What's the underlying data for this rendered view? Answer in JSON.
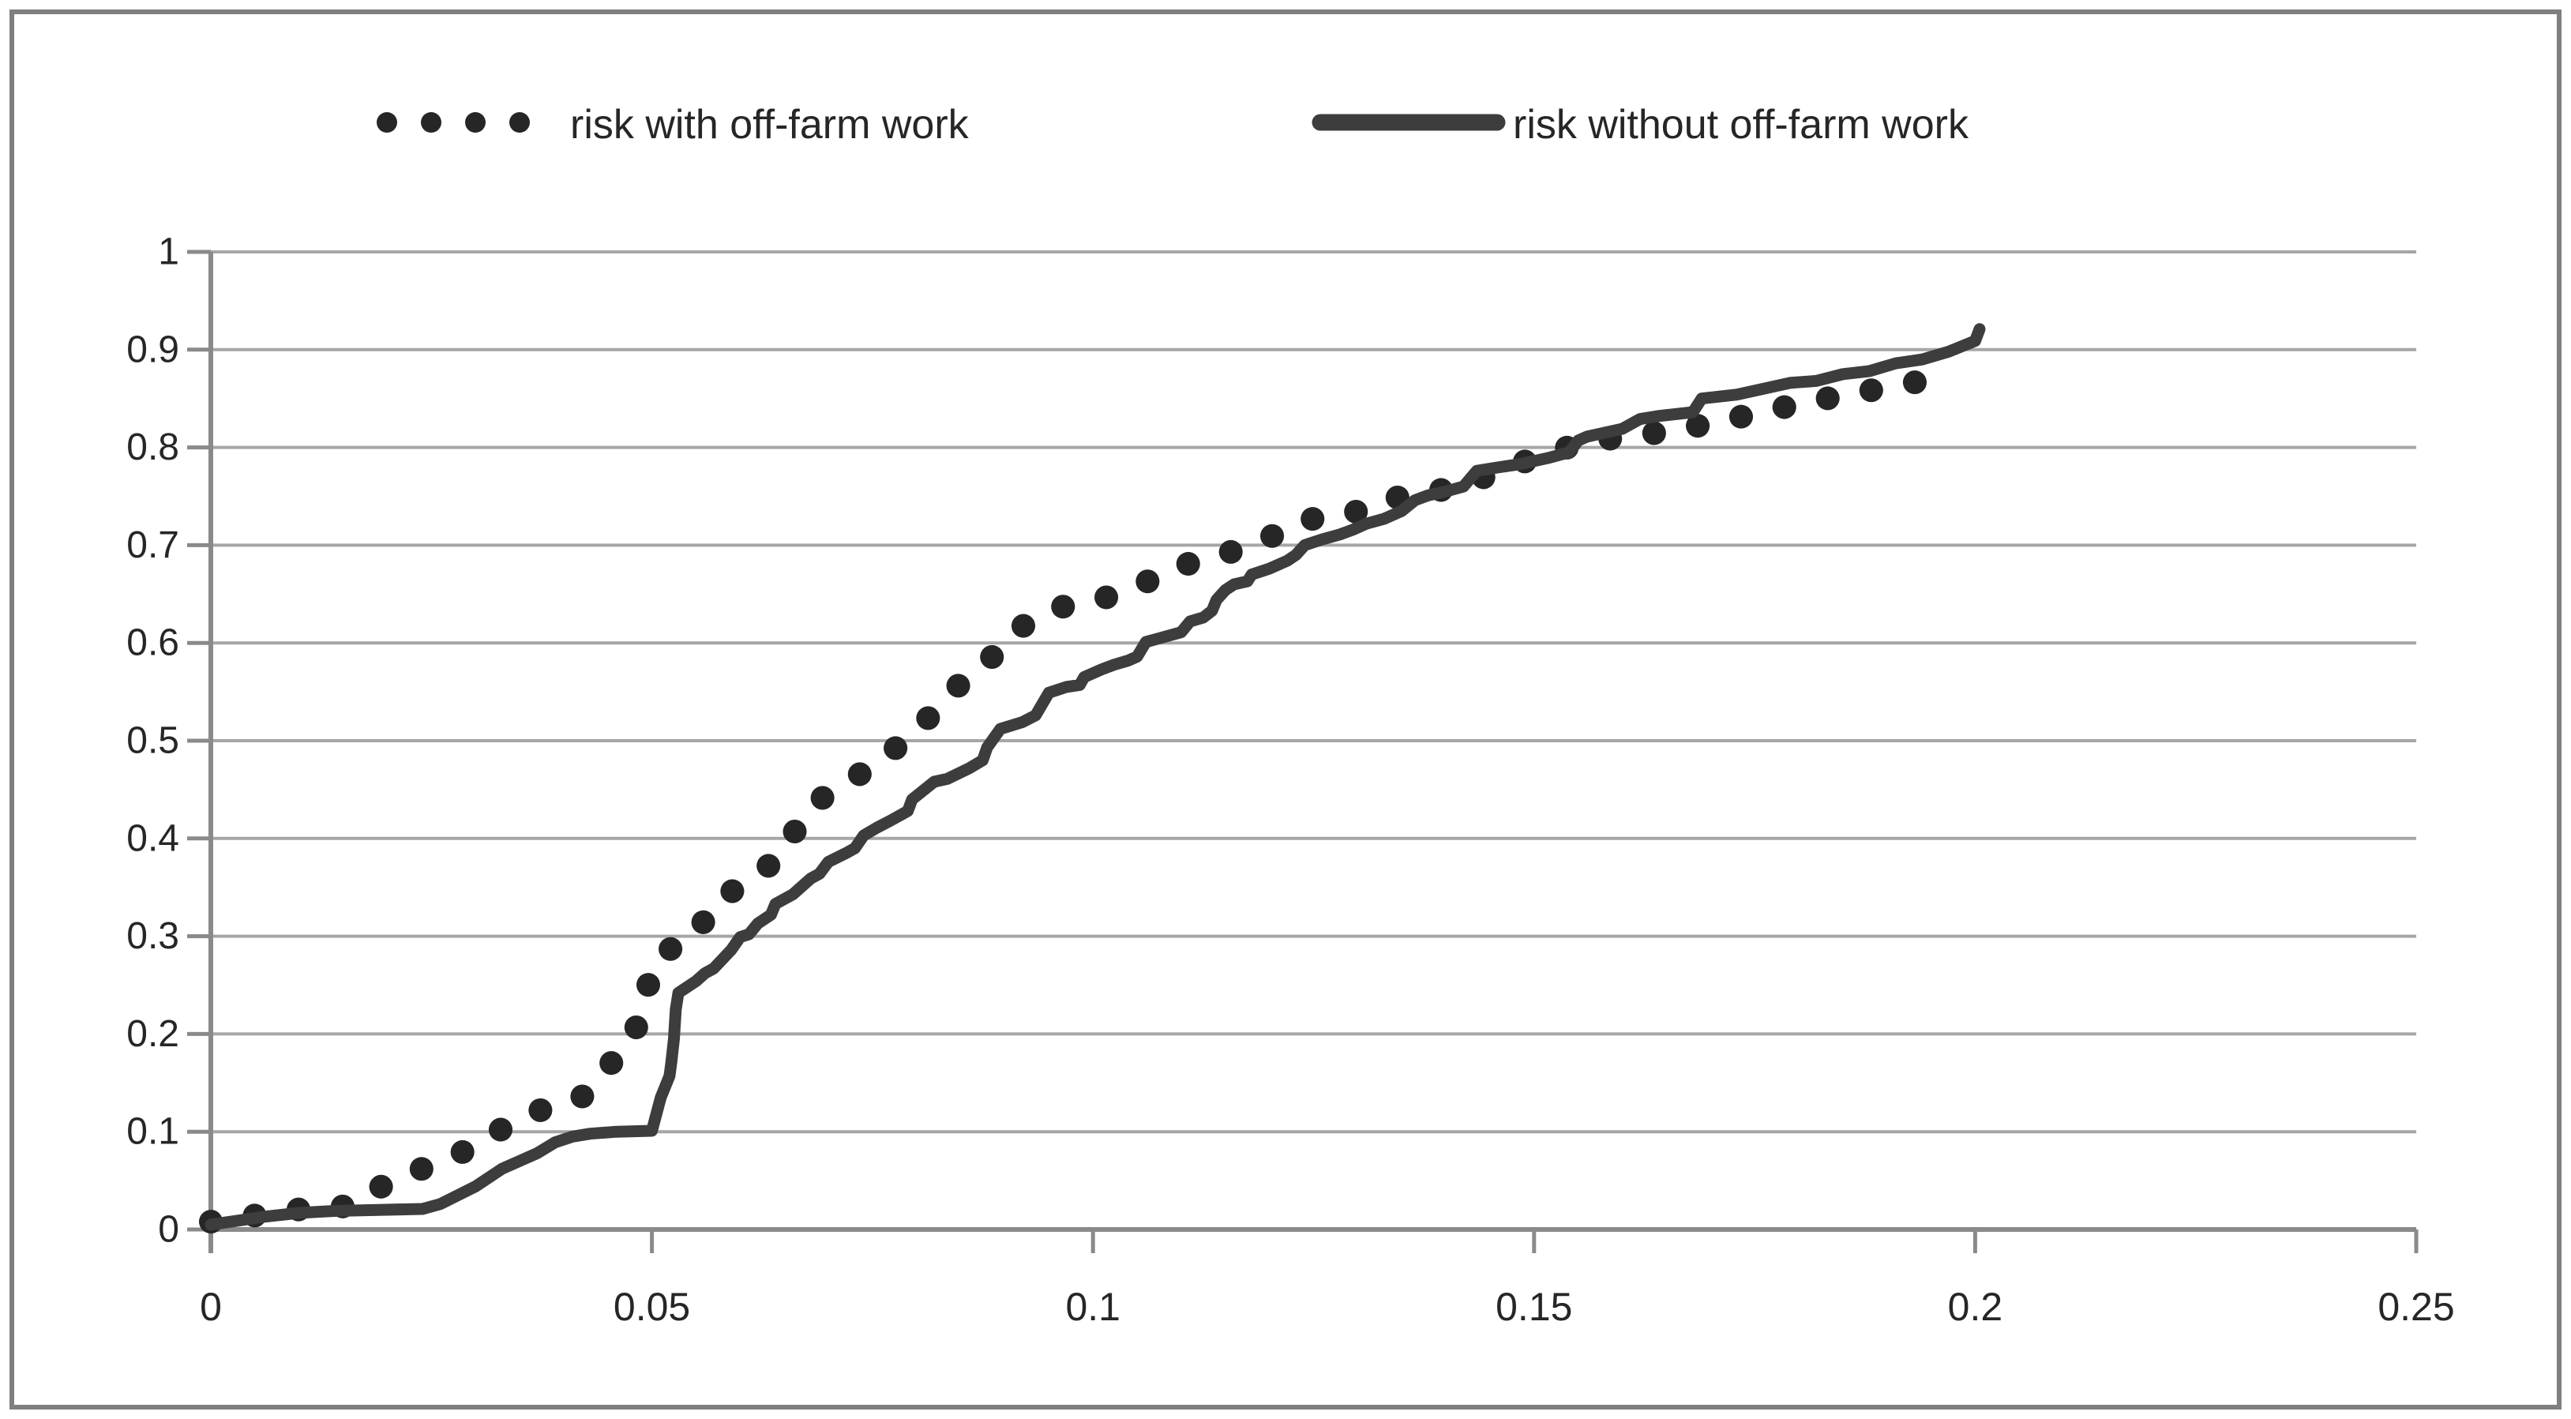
{
  "page": {
    "background": "#ffffff",
    "border_color": "#7f7f7f"
  },
  "colors": {
    "gridline": "#a6a6a6",
    "axis": "#8a8a8a",
    "tick_label": "#262626",
    "legend_text": "#262626",
    "series_dotted": "#262626",
    "series_solid": "#3d3d3d"
  },
  "legend": {
    "items": [
      {
        "label": "risk with off-farm work",
        "marker": "dotted-line",
        "color": "#262626"
      },
      {
        "label": "risk without off-farm work",
        "marker": "solid-line",
        "color": "#3d3d3d"
      }
    ]
  },
  "chart_data": {
    "type": "line",
    "title": "",
    "xlabel": "",
    "ylabel": "",
    "xlim": [
      0,
      0.25
    ],
    "ylim": [
      0,
      1
    ],
    "grid": "horizontal",
    "legend_position": "top",
    "x_ticks": {
      "values": [
        0,
        0.05,
        0.1,
        0.15,
        0.2,
        0.25
      ],
      "labels": [
        "0",
        "0.05",
        "0.1",
        "0.15",
        "0.2",
        "0.25"
      ]
    },
    "y_ticks": {
      "values": [
        0,
        0.1,
        0.2,
        0.3,
        0.4,
        0.5,
        0.6,
        0.7,
        0.8,
        0.9,
        1
      ],
      "labels": [
        "0",
        "0.1",
        "0.2",
        "0.3",
        "0.4",
        "0.5",
        "0.6",
        "0.7",
        "0.8",
        "0.9",
        "1"
      ]
    },
    "series": [
      {
        "name": "risk with off-farm work",
        "style": "dotted",
        "color": "#262626",
        "points": [
          [
            0.0,
            0.008
          ],
          [
            0.002,
            0.012
          ],
          [
            0.006,
            0.015
          ],
          [
            0.011,
            0.022
          ],
          [
            0.016,
            0.024
          ],
          [
            0.02,
            0.048
          ],
          [
            0.025,
            0.066
          ],
          [
            0.029,
            0.081
          ],
          [
            0.033,
            0.103
          ],
          [
            0.037,
            0.121
          ],
          [
            0.042,
            0.135
          ],
          [
            0.045,
            0.166
          ],
          [
            0.048,
            0.198
          ],
          [
            0.049,
            0.237
          ],
          [
            0.051,
            0.282
          ],
          [
            0.055,
            0.3
          ],
          [
            0.057,
            0.335
          ],
          [
            0.061,
            0.356
          ],
          [
            0.065,
            0.385
          ],
          [
            0.067,
            0.422
          ],
          [
            0.07,
            0.447
          ],
          [
            0.074,
            0.468
          ],
          [
            0.078,
            0.495
          ],
          [
            0.082,
            0.529
          ],
          [
            0.085,
            0.559
          ],
          [
            0.089,
            0.589
          ],
          [
            0.092,
            0.617
          ],
          [
            0.096,
            0.636
          ],
          [
            0.101,
            0.645
          ],
          [
            0.105,
            0.658
          ],
          [
            0.11,
            0.679
          ],
          [
            0.115,
            0.691
          ],
          [
            0.12,
            0.708
          ],
          [
            0.124,
            0.726
          ],
          [
            0.129,
            0.731
          ],
          [
            0.133,
            0.747
          ],
          [
            0.138,
            0.753
          ],
          [
            0.143,
            0.765
          ],
          [
            0.147,
            0.779
          ],
          [
            0.152,
            0.796
          ],
          [
            0.157,
            0.807
          ],
          [
            0.162,
            0.813
          ],
          [
            0.166,
            0.817
          ],
          [
            0.171,
            0.827
          ],
          [
            0.176,
            0.836
          ],
          [
            0.181,
            0.847
          ],
          [
            0.186,
            0.854
          ],
          [
            0.191,
            0.864
          ],
          [
            0.196,
            0.87
          ]
        ]
      },
      {
        "name": "risk without off-farm work",
        "style": "solid",
        "color": "#3d3d3d",
        "points": [
          [
            0.0,
            0.005
          ],
          [
            0.003,
            0.009
          ],
          [
            0.006,
            0.013
          ],
          [
            0.01,
            0.017
          ],
          [
            0.014,
            0.019
          ],
          [
            0.019,
            0.02
          ],
          [
            0.024,
            0.021
          ],
          [
            0.026,
            0.026
          ],
          [
            0.028,
            0.035
          ],
          [
            0.03,
            0.044
          ],
          [
            0.033,
            0.062
          ],
          [
            0.035,
            0.07
          ],
          [
            0.037,
            0.078
          ],
          [
            0.039,
            0.089
          ],
          [
            0.041,
            0.095
          ],
          [
            0.043,
            0.098
          ],
          [
            0.046,
            0.1
          ],
          [
            0.05,
            0.101
          ],
          [
            0.051,
            0.135
          ],
          [
            0.052,
            0.157
          ],
          [
            0.0522,
            0.171
          ],
          [
            0.0525,
            0.195
          ],
          [
            0.0527,
            0.225
          ],
          [
            0.053,
            0.242
          ],
          [
            0.055,
            0.254
          ],
          [
            0.056,
            0.262
          ],
          [
            0.057,
            0.267
          ],
          [
            0.059,
            0.286
          ],
          [
            0.06,
            0.299
          ],
          [
            0.061,
            0.302
          ],
          [
            0.062,
            0.313
          ],
          [
            0.0635,
            0.322
          ],
          [
            0.064,
            0.333
          ],
          [
            0.065,
            0.338
          ],
          [
            0.066,
            0.343
          ],
          [
            0.067,
            0.351
          ],
          [
            0.068,
            0.359
          ],
          [
            0.069,
            0.364
          ],
          [
            0.07,
            0.376
          ],
          [
            0.072,
            0.385
          ],
          [
            0.073,
            0.39
          ],
          [
            0.074,
            0.403
          ],
          [
            0.0755,
            0.411
          ],
          [
            0.077,
            0.418
          ],
          [
            0.079,
            0.428
          ],
          [
            0.0795,
            0.44
          ],
          [
            0.082,
            0.458
          ],
          [
            0.0835,
            0.461
          ],
          [
            0.086,
            0.472
          ],
          [
            0.0875,
            0.48
          ],
          [
            0.088,
            0.493
          ],
          [
            0.0895,
            0.512
          ],
          [
            0.092,
            0.519
          ],
          [
            0.0935,
            0.526
          ],
          [
            0.095,
            0.549
          ],
          [
            0.097,
            0.555
          ],
          [
            0.0985,
            0.557
          ],
          [
            0.099,
            0.565
          ],
          [
            0.101,
            0.573
          ],
          [
            0.1025,
            0.578
          ],
          [
            0.104,
            0.582
          ],
          [
            0.105,
            0.586
          ],
          [
            0.106,
            0.601
          ],
          [
            0.108,
            0.606
          ],
          [
            0.11,
            0.611
          ],
          [
            0.111,
            0.622
          ],
          [
            0.1125,
            0.626
          ],
          [
            0.1135,
            0.633
          ],
          [
            0.114,
            0.644
          ],
          [
            0.115,
            0.654
          ],
          [
            0.116,
            0.66
          ],
          [
            0.1175,
            0.663
          ],
          [
            0.118,
            0.67
          ],
          [
            0.12,
            0.676
          ],
          [
            0.122,
            0.684
          ],
          [
            0.123,
            0.69
          ],
          [
            0.124,
            0.7
          ],
          [
            0.126,
            0.706
          ],
          [
            0.128,
            0.711
          ],
          [
            0.1295,
            0.716
          ],
          [
            0.131,
            0.722
          ],
          [
            0.133,
            0.727
          ],
          [
            0.135,
            0.735
          ],
          [
            0.1365,
            0.746
          ],
          [
            0.138,
            0.751
          ],
          [
            0.14,
            0.755
          ],
          [
            0.142,
            0.76
          ],
          [
            0.1435,
            0.776
          ],
          [
            0.1455,
            0.779
          ],
          [
            0.1485,
            0.783
          ],
          [
            0.1515,
            0.789
          ],
          [
            0.154,
            0.795
          ],
          [
            0.155,
            0.807
          ],
          [
            0.156,
            0.811
          ],
          [
            0.16,
            0.819
          ],
          [
            0.162,
            0.829
          ],
          [
            0.164,
            0.832
          ],
          [
            0.168,
            0.836
          ],
          [
            0.169,
            0.85
          ],
          [
            0.173,
            0.854
          ],
          [
            0.176,
            0.86
          ],
          [
            0.179,
            0.866
          ],
          [
            0.182,
            0.868
          ],
          [
            0.185,
            0.875
          ],
          [
            0.188,
            0.878
          ],
          [
            0.191,
            0.886
          ],
          [
            0.194,
            0.89
          ],
          [
            0.197,
            0.898
          ],
          [
            0.2,
            0.909
          ],
          [
            0.2005,
            0.921
          ]
        ]
      }
    ]
  }
}
